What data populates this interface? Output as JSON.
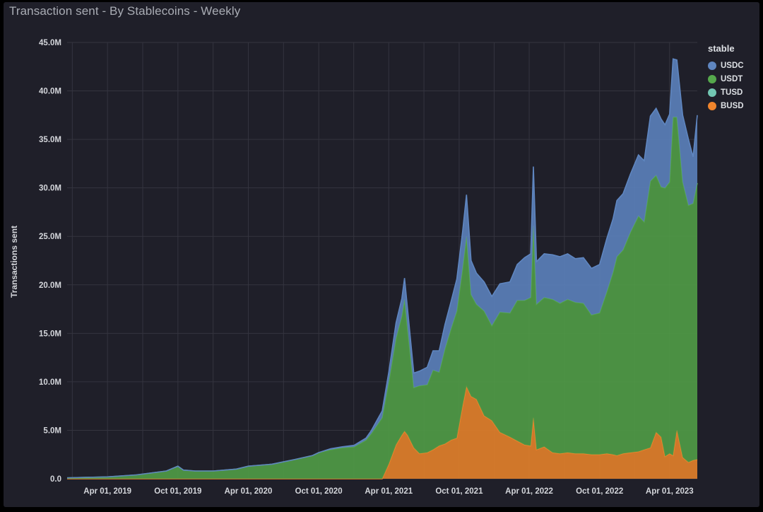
{
  "title": "Transaction sent - By Stablecoins - Weekly",
  "chart_data": {
    "type": "area",
    "stacked": true,
    "title": "Transaction sent - By Stablecoins - Weekly",
    "xlabel": "",
    "ylabel": "Transactions sent",
    "ylim": [
      0,
      45000000
    ],
    "y_ticks": [
      0,
      5000000,
      10000000,
      15000000,
      20000000,
      25000000,
      30000000,
      35000000,
      40000000,
      45000000
    ],
    "y_tick_labels": [
      "0.0",
      "5.0M",
      "10.0M",
      "15.0M",
      "20.0M",
      "25.0M",
      "30.0M",
      "35.0M",
      "40.0M",
      "45.0M"
    ],
    "xlim": [
      "2018-12-17",
      "2023-06-12"
    ],
    "x_ticks": [
      "2019-04-01",
      "2019-10-01",
      "2020-04-01",
      "2020-10-01",
      "2021-04-01",
      "2021-10-01",
      "2022-04-01",
      "2022-10-01",
      "2023-04-01"
    ],
    "x_tick_labels": [
      "Apr 01, 2019",
      "Oct 01, 2019",
      "Apr 01, 2020",
      "Oct 01, 2020",
      "Apr 01, 2021",
      "Oct 01, 2021",
      "Apr 01, 2022",
      "Oct 01, 2022",
      "Apr 01, 2023"
    ],
    "grid": true,
    "legend": {
      "title": "stable",
      "position": "right"
    },
    "colors": {
      "USDC": "#5a7fb8",
      "USDT": "#4f9a45",
      "TUSD": "#6cc3ae",
      "BUSD": "#e07f2a"
    },
    "legend_colors": {
      "USDC": "#5f86c0",
      "USDT": "#55a84c",
      "TUSD": "#72c6b2",
      "BUSD": "#f0852c"
    },
    "x": [
      "2018-12-17",
      "2019-04-01",
      "2019-06-15",
      "2019-09-01",
      "2019-10-01",
      "2019-10-15",
      "2019-11-15",
      "2020-01-01",
      "2020-03-01",
      "2020-04-01",
      "2020-06-01",
      "2020-08-01",
      "2020-09-15",
      "2020-10-01",
      "2020-11-01",
      "2020-12-01",
      "2021-01-01",
      "2021-02-01",
      "2021-02-15",
      "2021-03-01",
      "2021-03-15",
      "2021-04-01",
      "2021-04-20",
      "2021-05-05",
      "2021-05-12",
      "2021-05-20",
      "2021-06-05",
      "2021-06-20",
      "2021-07-10",
      "2021-07-25",
      "2021-08-10",
      "2021-08-25",
      "2021-09-10",
      "2021-09-25",
      "2021-10-10",
      "2021-10-20",
      "2021-11-01",
      "2021-11-15",
      "2021-12-05",
      "2021-12-25",
      "2022-01-15",
      "2022-02-10",
      "2022-03-01",
      "2022-03-20",
      "2022-04-05",
      "2022-04-12",
      "2022-04-20",
      "2022-05-10",
      "2022-06-01",
      "2022-06-20",
      "2022-07-10",
      "2022-07-30",
      "2022-08-20",
      "2022-09-10",
      "2022-10-01",
      "2022-10-20",
      "2022-11-05",
      "2022-11-15",
      "2022-12-01",
      "2022-12-20",
      "2023-01-10",
      "2023-01-25",
      "2023-02-10",
      "2023-02-25",
      "2023-03-10",
      "2023-03-20",
      "2023-04-01",
      "2023-04-10",
      "2023-04-20",
      "2023-05-05",
      "2023-05-20",
      "2023-06-01",
      "2023-06-12"
    ],
    "series": [
      {
        "name": "BUSD",
        "values": [
          0,
          0,
          0,
          0,
          0,
          0,
          0,
          0,
          0,
          0,
          0,
          0,
          0,
          0,
          0,
          0,
          0,
          0,
          0,
          0,
          0,
          1500000,
          3500000,
          4500000,
          4900000,
          4500000,
          3200000,
          2600000,
          2700000,
          3000000,
          3400000,
          3600000,
          4000000,
          4200000,
          7500000,
          9500000,
          8500000,
          8200000,
          6500000,
          6000000,
          4800000,
          4300000,
          3900000,
          3500000,
          3400000,
          6300000,
          3000000,
          3300000,
          2700000,
          2600000,
          2700000,
          2600000,
          2600000,
          2500000,
          2500000,
          2600000,
          2500000,
          2400000,
          2600000,
          2700000,
          2800000,
          3000000,
          3200000,
          4800000,
          4300000,
          2300000,
          2600000,
          2400000,
          5000000,
          2200000,
          1700000,
          1900000,
          2000000
        ]
      },
      {
        "name": "TUSD",
        "values": [
          0,
          0,
          0,
          0,
          0,
          0,
          0,
          0,
          0,
          0,
          0,
          0,
          0,
          0,
          0,
          0,
          0,
          0,
          0,
          0,
          0,
          0,
          0,
          0,
          0,
          0,
          0,
          0,
          0,
          0,
          0,
          0,
          0,
          0,
          0,
          0,
          0,
          0,
          0,
          0,
          0,
          0,
          0,
          0,
          0,
          0,
          0,
          0,
          0,
          0,
          0,
          0,
          0,
          0,
          0,
          0,
          0,
          0,
          0,
          0,
          0,
          0,
          0,
          0,
          0,
          0,
          0,
          0,
          0,
          0,
          0,
          0,
          0
        ]
      },
      {
        "name": "USDT",
        "values": [
          100000,
          200000,
          400000,
          800000,
          1300000,
          900000,
          800000,
          800000,
          1000000,
          1300000,
          1500000,
          2000000,
          2400000,
          2700000,
          3000000,
          3200000,
          3300000,
          4000000,
          4700000,
          5500000,
          6300000,
          8500000,
          11000000,
          12300000,
          13600000,
          11000000,
          6200000,
          7000000,
          7000000,
          8200000,
          7600000,
          9800000,
          11500000,
          13100000,
          14200000,
          15500000,
          10500000,
          9800000,
          10800000,
          9800000,
          12400000,
          12800000,
          14500000,
          14900000,
          15300000,
          19800000,
          15000000,
          15400000,
          15800000,
          15500000,
          15800000,
          15600000,
          15500000,
          14400000,
          14600000,
          16700000,
          18800000,
          20500000,
          21000000,
          22700000,
          24300000,
          23500000,
          27500000,
          26500000,
          25800000,
          27700000,
          28000000,
          34900000,
          32300000,
          28400000,
          26500000,
          26500000,
          28500000
        ]
      },
      {
        "name": "USDC",
        "values": [
          0,
          0,
          0,
          0,
          0,
          0,
          0,
          0,
          0,
          0,
          0,
          0,
          0,
          0,
          100000,
          100000,
          150000,
          200000,
          300000,
          500000,
          700000,
          1000000,
          1600000,
          1800000,
          2200000,
          2000000,
          1500000,
          1500000,
          1800000,
          2000000,
          2200000,
          2500000,
          2800000,
          3300000,
          3800000,
          4300000,
          3500000,
          3200000,
          3000000,
          3000000,
          2900000,
          3200000,
          3700000,
          4400000,
          4500000,
          6100000,
          4400000,
          4500000,
          4600000,
          4800000,
          4700000,
          4500000,
          4700000,
          4800000,
          5000000,
          5500000,
          5500000,
          5800000,
          5800000,
          6000000,
          6300000,
          6300000,
          6700000,
          6900000,
          7000000,
          6500000,
          7000000,
          6000000,
          5900000,
          6900000,
          6800000,
          4800000,
          7000000
        ]
      }
    ]
  }
}
